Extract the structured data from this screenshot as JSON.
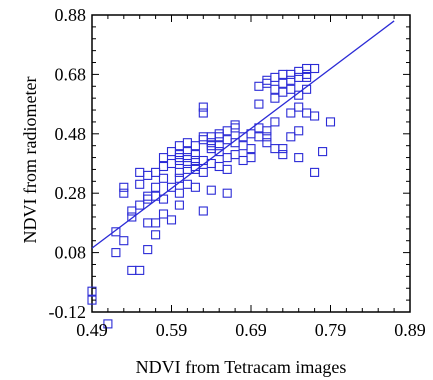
{
  "chart_data": {
    "type": "scatter",
    "title": "",
    "xlabel": "NDVI from Tetracam images",
    "ylabel": "NDVI from radiometer",
    "xlim": [
      0.49,
      0.89
    ],
    "ylim": [
      -0.12,
      0.88
    ],
    "xticks": [
      0.49,
      0.59,
      0.69,
      0.79,
      0.89
    ],
    "yticks": [
      -0.12,
      0.08,
      0.28,
      0.48,
      0.68,
      0.88
    ],
    "xtick_labels": [
      "0.49",
      "0.59",
      "0.69",
      "0.79",
      "0.89"
    ],
    "ytick_labels": [
      "-0.12",
      "0.08",
      "0.28",
      "0.48",
      "0.68",
      "0.88"
    ],
    "grid": false,
    "colors": {
      "marker": "#2b2bd6",
      "line": "#2b2bd6",
      "axis": "#000000"
    },
    "regression_line": {
      "x": [
        0.49,
        0.87
      ],
      "y": [
        0.095,
        0.86
      ]
    },
    "points": [
      [
        0.49,
        -0.05
      ],
      [
        0.49,
        -0.08
      ],
      [
        0.51,
        -0.16
      ],
      [
        0.52,
        0.15
      ],
      [
        0.52,
        0.08
      ],
      [
        0.53,
        0.3
      ],
      [
        0.53,
        0.12
      ],
      [
        0.54,
        0.02
      ],
      [
        0.55,
        0.02
      ],
      [
        0.54,
        0.2
      ],
      [
        0.55,
        0.31
      ],
      [
        0.55,
        0.24
      ],
      [
        0.56,
        0.27
      ],
      [
        0.56,
        0.09
      ],
      [
        0.57,
        0.14
      ],
      [
        0.56,
        0.34
      ],
      [
        0.57,
        0.3
      ],
      [
        0.58,
        0.26
      ],
      [
        0.58,
        0.21
      ],
      [
        0.59,
        0.19
      ],
      [
        0.57,
        0.35
      ],
      [
        0.58,
        0.4
      ],
      [
        0.59,
        0.38
      ],
      [
        0.59,
        0.3
      ],
      [
        0.6,
        0.24
      ],
      [
        0.6,
        0.35
      ],
      [
        0.61,
        0.31
      ],
      [
        0.61,
        0.4
      ],
      [
        0.62,
        0.37
      ],
      [
        0.62,
        0.3
      ],
      [
        0.61,
        0.42
      ],
      [
        0.62,
        0.44
      ],
      [
        0.63,
        0.39
      ],
      [
        0.63,
        0.35
      ],
      [
        0.63,
        0.22
      ],
      [
        0.64,
        0.43
      ],
      [
        0.64,
        0.38
      ],
      [
        0.64,
        0.47
      ],
      [
        0.65,
        0.42
      ],
      [
        0.65,
        0.48
      ],
      [
        0.65,
        0.44
      ],
      [
        0.66,
        0.4
      ],
      [
        0.66,
        0.46
      ],
      [
        0.66,
        0.36
      ],
      [
        0.67,
        0.45
      ],
      [
        0.68,
        0.39
      ],
      [
        0.68,
        0.44
      ],
      [
        0.69,
        0.48
      ],
      [
        0.69,
        0.4
      ],
      [
        0.7,
        0.5
      ],
      [
        0.71,
        0.45
      ],
      [
        0.72,
        0.52
      ],
      [
        0.73,
        0.43
      ],
      [
        0.73,
        0.41
      ],
      [
        0.74,
        0.47
      ],
      [
        0.75,
        0.4
      ],
      [
        0.75,
        0.49
      ],
      [
        0.76,
        0.55
      ],
      [
        0.77,
        0.54
      ],
      [
        0.77,
        0.35
      ],
      [
        0.78,
        0.42
      ],
      [
        0.79,
        0.52
      ],
      [
        0.63,
        0.55
      ],
      [
        0.63,
        0.57
      ],
      [
        0.67,
        0.5
      ],
      [
        0.7,
        0.58
      ],
      [
        0.72,
        0.6
      ],
      [
        0.71,
        0.66
      ],
      [
        0.72,
        0.67
      ],
      [
        0.73,
        0.65
      ],
      [
        0.73,
        0.68
      ],
      [
        0.74,
        0.66
      ],
      [
        0.74,
        0.68
      ],
      [
        0.75,
        0.67
      ],
      [
        0.75,
        0.69
      ],
      [
        0.76,
        0.68
      ],
      [
        0.76,
        0.7
      ],
      [
        0.76,
        0.67
      ],
      [
        0.77,
        0.7
      ],
      [
        0.74,
        0.63
      ],
      [
        0.75,
        0.61
      ],
      [
        0.76,
        0.63
      ],
      [
        0.71,
        0.65
      ],
      [
        0.72,
        0.63
      ],
      [
        0.73,
        0.62
      ],
      [
        0.7,
        0.64
      ],
      [
        0.75,
        0.57
      ],
      [
        0.74,
        0.55
      ],
      [
        0.71,
        0.47
      ],
      [
        0.72,
        0.43
      ],
      [
        0.67,
        0.51
      ],
      [
        0.66,
        0.49
      ],
      [
        0.65,
        0.47
      ],
      [
        0.64,
        0.45
      ],
      [
        0.63,
        0.46
      ],
      [
        0.62,
        0.41
      ],
      [
        0.6,
        0.33
      ],
      [
        0.59,
        0.42
      ],
      [
        0.57,
        0.27
      ],
      [
        0.58,
        0.33
      ],
      [
        0.6,
        0.28
      ],
      [
        0.61,
        0.36
      ],
      [
        0.64,
        0.29
      ],
      [
        0.62,
        0.36
      ],
      [
        0.66,
        0.28
      ],
      [
        0.6,
        0.44
      ],
      [
        0.61,
        0.45
      ],
      [
        0.6,
        0.39
      ],
      [
        0.58,
        0.37
      ],
      [
        0.56,
        0.18
      ],
      [
        0.57,
        0.18
      ],
      [
        0.56,
        0.26
      ],
      [
        0.54,
        0.22
      ],
      [
        0.55,
        0.35
      ],
      [
        0.53,
        0.28
      ],
      [
        0.6,
        0.4
      ],
      [
        0.62,
        0.39
      ],
      [
        0.65,
        0.37
      ],
      [
        0.67,
        0.41
      ],
      [
        0.69,
        0.43
      ],
      [
        0.7,
        0.47
      ],
      [
        0.71,
        0.49
      ],
      [
        0.68,
        0.47
      ],
      [
        0.64,
        0.44
      ],
      [
        0.63,
        0.47
      ],
      [
        0.6,
        0.41
      ],
      [
        0.61,
        0.38
      ]
    ]
  }
}
